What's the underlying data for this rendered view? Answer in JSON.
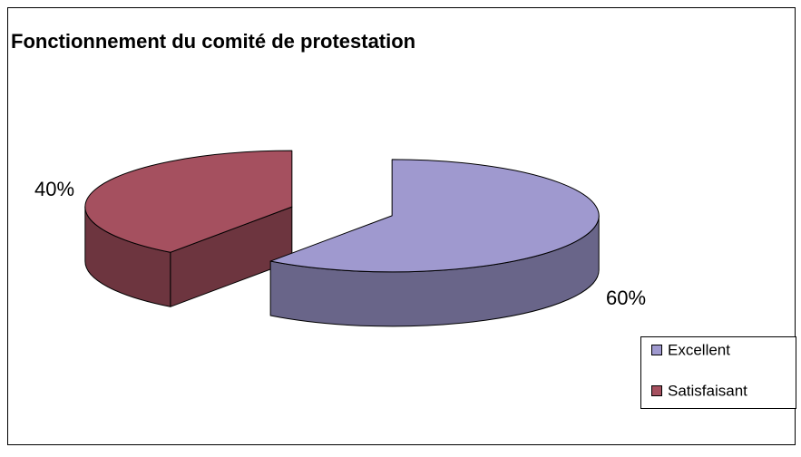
{
  "chart_data": {
    "type": "pie3d",
    "title": "Fonctionnement du comité de protestation",
    "categories": [
      "Excellent",
      "Satisfaisant"
    ],
    "values": [
      60,
      40
    ],
    "value_labels": [
      "60%",
      "40%"
    ],
    "colors": [
      "#9f99cf",
      "#a5505f"
    ],
    "legend": "right"
  }
}
